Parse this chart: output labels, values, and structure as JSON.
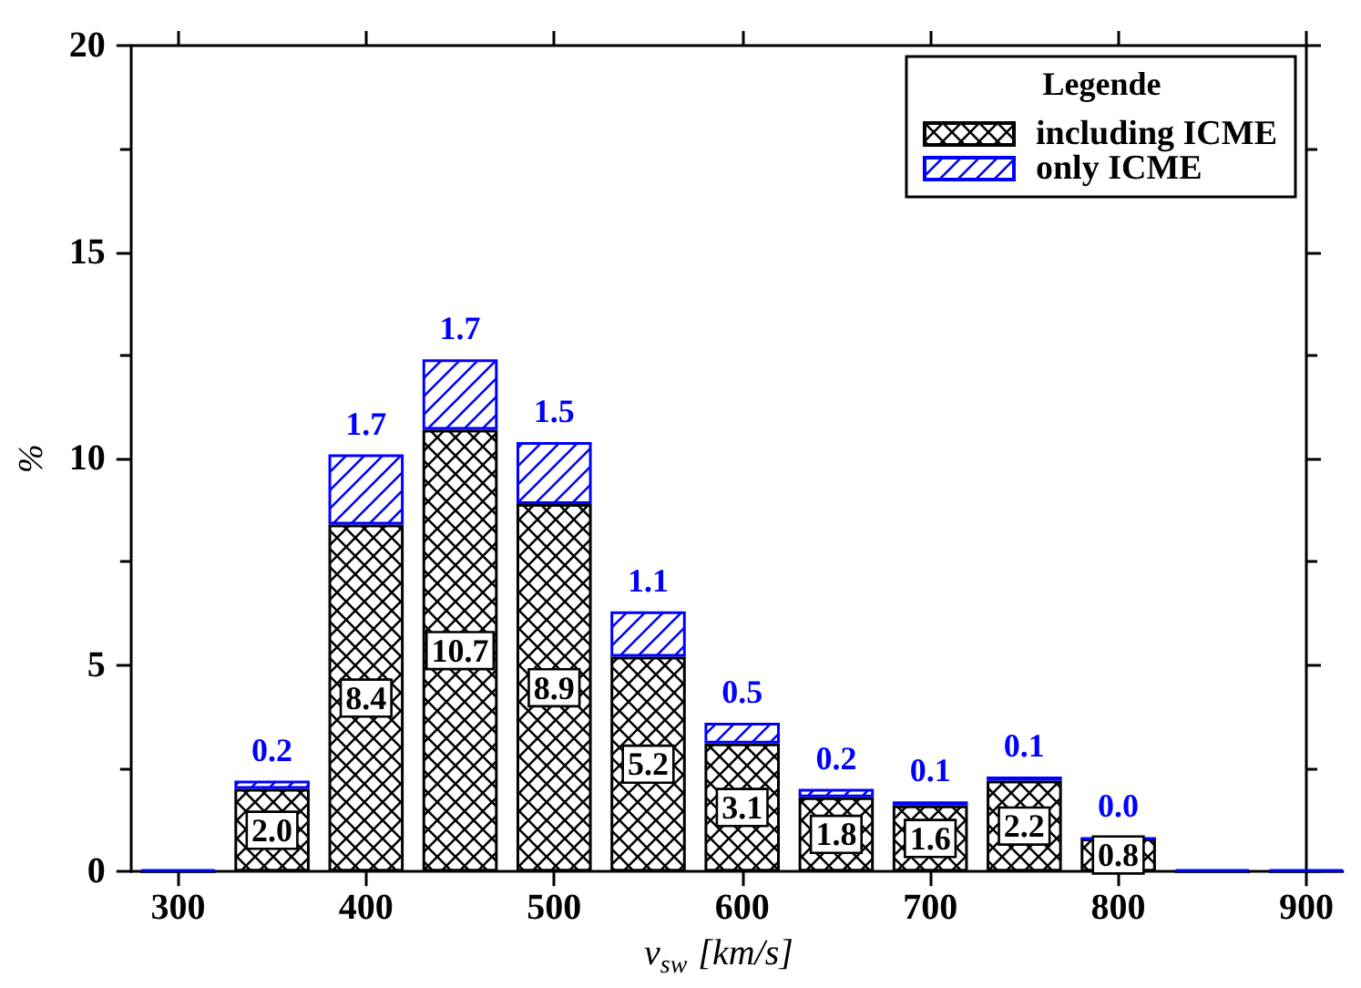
{
  "chart_data": {
    "type": "bar",
    "stacked": true,
    "x": [
      300,
      350,
      400,
      450,
      500,
      550,
      600,
      650,
      700,
      750,
      800,
      850,
      900
    ],
    "series": [
      {
        "name": "including ICME",
        "color": "#000000",
        "values": [
          0,
          2.0,
          8.4,
          10.7,
          8.9,
          5.2,
          3.1,
          1.8,
          1.6,
          2.2,
          0.8,
          0,
          0
        ],
        "value_labels": [
          null,
          "2.0",
          "8.4",
          "10.7",
          "8.9",
          "5.2",
          "3.1",
          "1.8",
          "1.6",
          "2.2",
          "0.8",
          null,
          null
        ]
      },
      {
        "name": "only ICME",
        "color": "#0000ff",
        "values": [
          0.05,
          0.2,
          1.7,
          1.7,
          1.5,
          1.1,
          0.5,
          0.2,
          0.1,
          0.1,
          0.0,
          0.05,
          0.05
        ],
        "value_labels": [
          null,
          "0.2",
          "1.7",
          "1.7",
          "1.5",
          "1.1",
          "0.5",
          "0.2",
          "0.1",
          "0.1",
          "0.0",
          null,
          null
        ]
      }
    ],
    "xlabel": "v$_{sw}$ [km/s]",
    "ylabel": "%",
    "legend_title": "Legende",
    "legend": "top right",
    "xlim": [
      275,
      900
    ],
    "ylim": [
      0,
      20
    ],
    "xticks": [
      300,
      400,
      500,
      600,
      700,
      800,
      900
    ],
    "yticks": [
      0,
      5,
      10,
      15,
      20
    ],
    "grid": false
  }
}
